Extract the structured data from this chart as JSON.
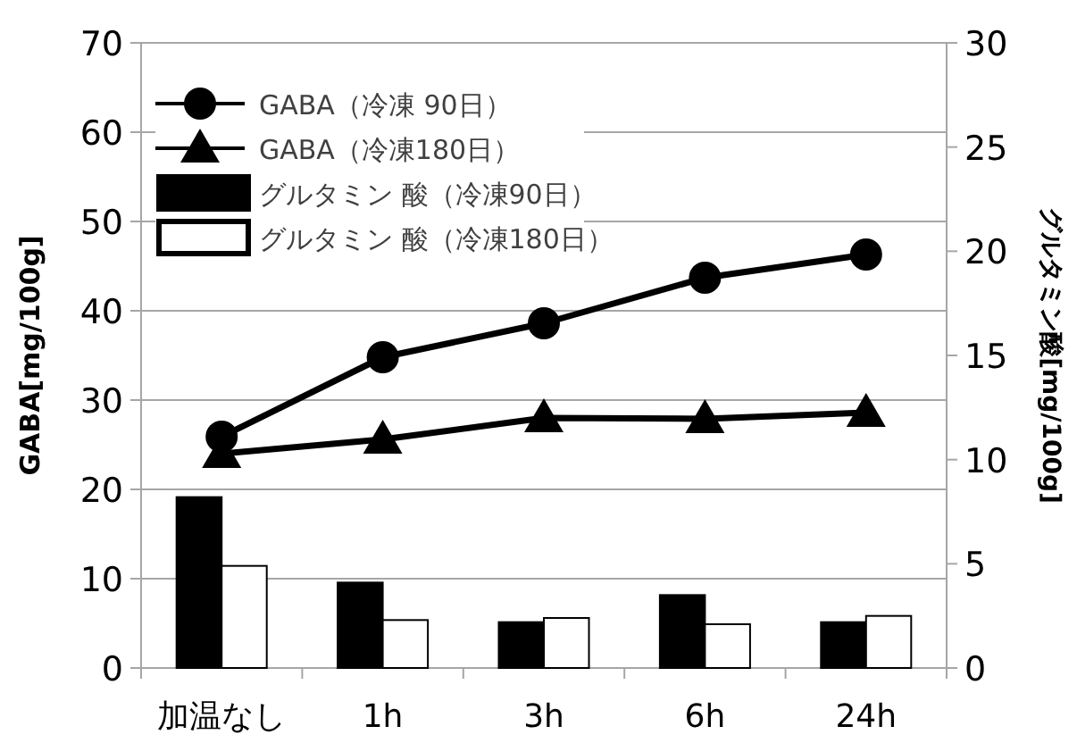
{
  "chart_data": {
    "type": "bar",
    "categories": [
      "加温なし",
      "1h",
      "3h",
      "6h",
      "24h"
    ],
    "ylabel": "GABA[mg/100g]",
    "y2label": "グルタミン酸[mg/100g]",
    "ylim": [
      0,
      70
    ],
    "yticks": [
      0,
      10,
      20,
      30,
      40,
      50,
      60,
      70
    ],
    "y2lim": [
      0,
      30
    ],
    "y2ticks": [
      0,
      5,
      10,
      15,
      20,
      25,
      30
    ],
    "grid": "y",
    "legend": "top left",
    "series": [
      {
        "name": "GABA（冷凍 90日）",
        "type": "line",
        "marker": "circle",
        "color": "#000000",
        "values": [
          25.9,
          34.8,
          38.6,
          43.7,
          46.3
        ]
      },
      {
        "name": "GABA（冷凍180日）",
        "type": "line",
        "marker": "triangle",
        "color": "#000000",
        "values": [
          24.0,
          25.6,
          28.0,
          27.9,
          28.6
        ]
      },
      {
        "name": "グルタミン 酸（冷凍90日）",
        "axis": "y2",
        "color": "#000000",
        "values": [
          8.2,
          4.1,
          2.2,
          3.5,
          2.2
        ]
      },
      {
        "name": "グルタミン 酸（冷凍180日）",
        "axis": "y2",
        "color": "#ffffff",
        "values": [
          4.9,
          2.3,
          2.4,
          2.1,
          2.5
        ]
      }
    ]
  }
}
